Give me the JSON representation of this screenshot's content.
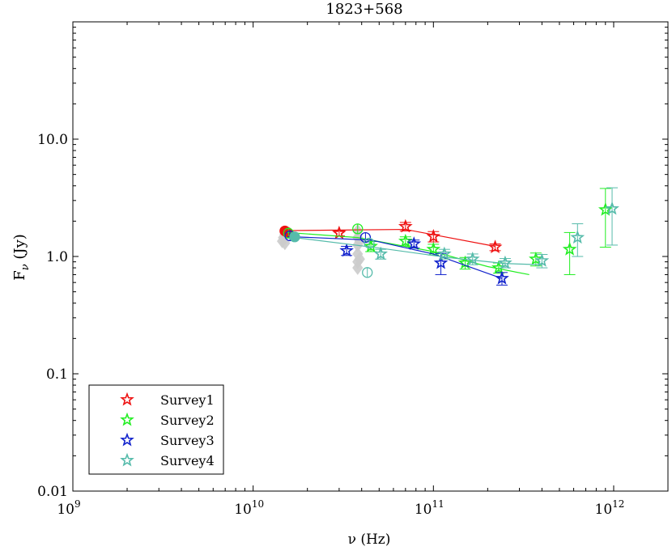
{
  "chart_data": {
    "type": "scatter",
    "title": "1823+568",
    "xlabel": "ν (Hz)",
    "ylabel": "F_ν (Jy)",
    "ylabel_main": "F",
    "ylabel_sub": "ν",
    "ylabel_unit": " (Jy)",
    "xscale": "log",
    "yscale": "log",
    "xlim": [
      1000000000.0,
      2000000000000.0
    ],
    "ylim": [
      0.01,
      100
    ],
    "grid": false,
    "legend_position": "bottom-left",
    "x_ticks": [
      {
        "value": 1000000000.0,
        "base": "10",
        "exp": "9"
      },
      {
        "value": 10000000000.0,
        "base": "10",
        "exp": "10"
      },
      {
        "value": 100000000000.0,
        "base": "10",
        "exp": "11"
      },
      {
        "value": 1000000000000.0,
        "base": "10",
        "exp": "12"
      }
    ],
    "y_ticks": [
      {
        "value": 0.01,
        "label": "0.01"
      },
      {
        "value": 0.1,
        "label": "0.1"
      },
      {
        "value": 1,
        "label": "1.0"
      },
      {
        "value": 10,
        "label": "10.0"
      }
    ],
    "background_points": {
      "color": "#cccccc",
      "points": [
        {
          "x": 14500000000.0,
          "y": 1.35
        },
        {
          "x": 14700000000.0,
          "y": 1.45
        },
        {
          "x": 15000000000.0,
          "y": 1.55
        },
        {
          "x": 15000000000.0,
          "y": 1.3
        },
        {
          "x": 38000000000.0,
          "y": 1.65
        },
        {
          "x": 38000000000.0,
          "y": 1.45
        },
        {
          "x": 38000000000.0,
          "y": 1.25
        },
        {
          "x": 38000000000.0,
          "y": 1.05
        },
        {
          "x": 38000000000.0,
          "y": 0.9
        },
        {
          "x": 38000000000.0,
          "y": 0.8
        },
        {
          "x": 39000000000.0,
          "y": 1.35
        },
        {
          "x": 39000000000.0,
          "y": 0.95
        }
      ]
    },
    "series": [
      {
        "name": "Survey1",
        "color": "#ee1111",
        "circles": [
          {
            "x": 15000000000.0,
            "y": 1.65,
            "filled": true
          },
          {
            "x": 15500000000.0,
            "y": 1.6,
            "filled": true
          }
        ],
        "stars": [
          {
            "x": 30000000000.0,
            "y": 1.58,
            "err": 0.08
          },
          {
            "x": 70000000000.0,
            "y": 1.8,
            "err": 0.15
          },
          {
            "x": 100000000000.0,
            "y": 1.48,
            "err": 0.15
          },
          {
            "x": 220000000000.0,
            "y": 1.2,
            "err": 0.08
          }
        ],
        "fit": [
          [
            15000000000.0,
            1.66
          ],
          [
            70000000000.0,
            1.7
          ],
          [
            220000000000.0,
            1.22
          ]
        ]
      },
      {
        "name": "Survey2",
        "color": "#22ee22",
        "circles": [
          {
            "x": 15700000000.0,
            "y": 1.58,
            "filled": false
          },
          {
            "x": 38000000000.0,
            "y": 1.72,
            "filled": false
          }
        ],
        "stars": [
          {
            "x": 45000000000.0,
            "y": 1.22,
            "err": 0.12
          },
          {
            "x": 70000000000.0,
            "y": 1.35,
            "err": 0.12
          },
          {
            "x": 100000000000.0,
            "y": 1.15,
            "err": 0.12
          },
          {
            "x": 150000000000.0,
            "y": 0.88,
            "err": 0.1
          },
          {
            "x": 230000000000.0,
            "y": 0.8,
            "err": 0.08
          },
          {
            "x": 370000000000.0,
            "y": 0.95,
            "err": 0.12
          },
          {
            "x": 570000000000.0,
            "y": 1.15,
            "err": 0.45
          },
          {
            "x": 900000000000.0,
            "y": 2.5,
            "err": 1.3
          }
        ],
        "fit": [
          [
            15500000000.0,
            1.6
          ],
          [
            38000000000.0,
            1.45
          ],
          [
            100000000000.0,
            1.1
          ],
          [
            200000000000.0,
            0.82
          ],
          [
            340000000000.0,
            0.7
          ]
        ]
      },
      {
        "name": "Survey3",
        "color": "#1122cc",
        "circles": [
          {
            "x": 16000000000.0,
            "y": 1.5,
            "filled": false
          },
          {
            "x": 42000000000.0,
            "y": 1.45,
            "filled": false
          }
        ],
        "stars": [
          {
            "x": 33000000000.0,
            "y": 1.12,
            "err": 0.1
          },
          {
            "x": 78000000000.0,
            "y": 1.28,
            "err": 0.1
          },
          {
            "x": 110000000000.0,
            "y": 0.88,
            "err": 0.18
          },
          {
            "x": 240000000000.0,
            "y": 0.65,
            "err": 0.08
          }
        ],
        "fit": [
          [
            15500000000.0,
            1.48
          ],
          [
            45000000000.0,
            1.38
          ],
          [
            100000000000.0,
            1.05
          ],
          [
            240000000000.0,
            0.65
          ]
        ]
      },
      {
        "name": "Survey4",
        "color": "#55bbaa",
        "circles": [
          {
            "x": 17000000000.0,
            "y": 1.47,
            "filled": true
          },
          {
            "x": 44000000000.0,
            "y": 1.3,
            "filled": false
          },
          {
            "x": 43000000000.0,
            "y": 0.73,
            "filled": false
          }
        ],
        "stars": [
          {
            "x": 51000000000.0,
            "y": 1.05,
            "err": 0.1
          },
          {
            "x": 115000000000.0,
            "y": 1.05,
            "err": 0.1
          },
          {
            "x": 165000000000.0,
            "y": 0.95,
            "err": 0.1
          },
          {
            "x": 250000000000.0,
            "y": 0.88,
            "err": 0.08
          },
          {
            "x": 400000000000.0,
            "y": 0.92,
            "err": 0.12
          },
          {
            "x": 630000000000.0,
            "y": 1.45,
            "err": 0.45
          },
          {
            "x": 980000000000.0,
            "y": 2.55,
            "err": 1.3
          }
        ],
        "fit": [
          [
            17000000000.0,
            1.45
          ],
          [
            50000000000.0,
            1.18
          ],
          [
            120000000000.0,
            0.98
          ],
          [
            250000000000.0,
            0.87
          ],
          [
            400000000000.0,
            0.85
          ]
        ]
      }
    ]
  }
}
